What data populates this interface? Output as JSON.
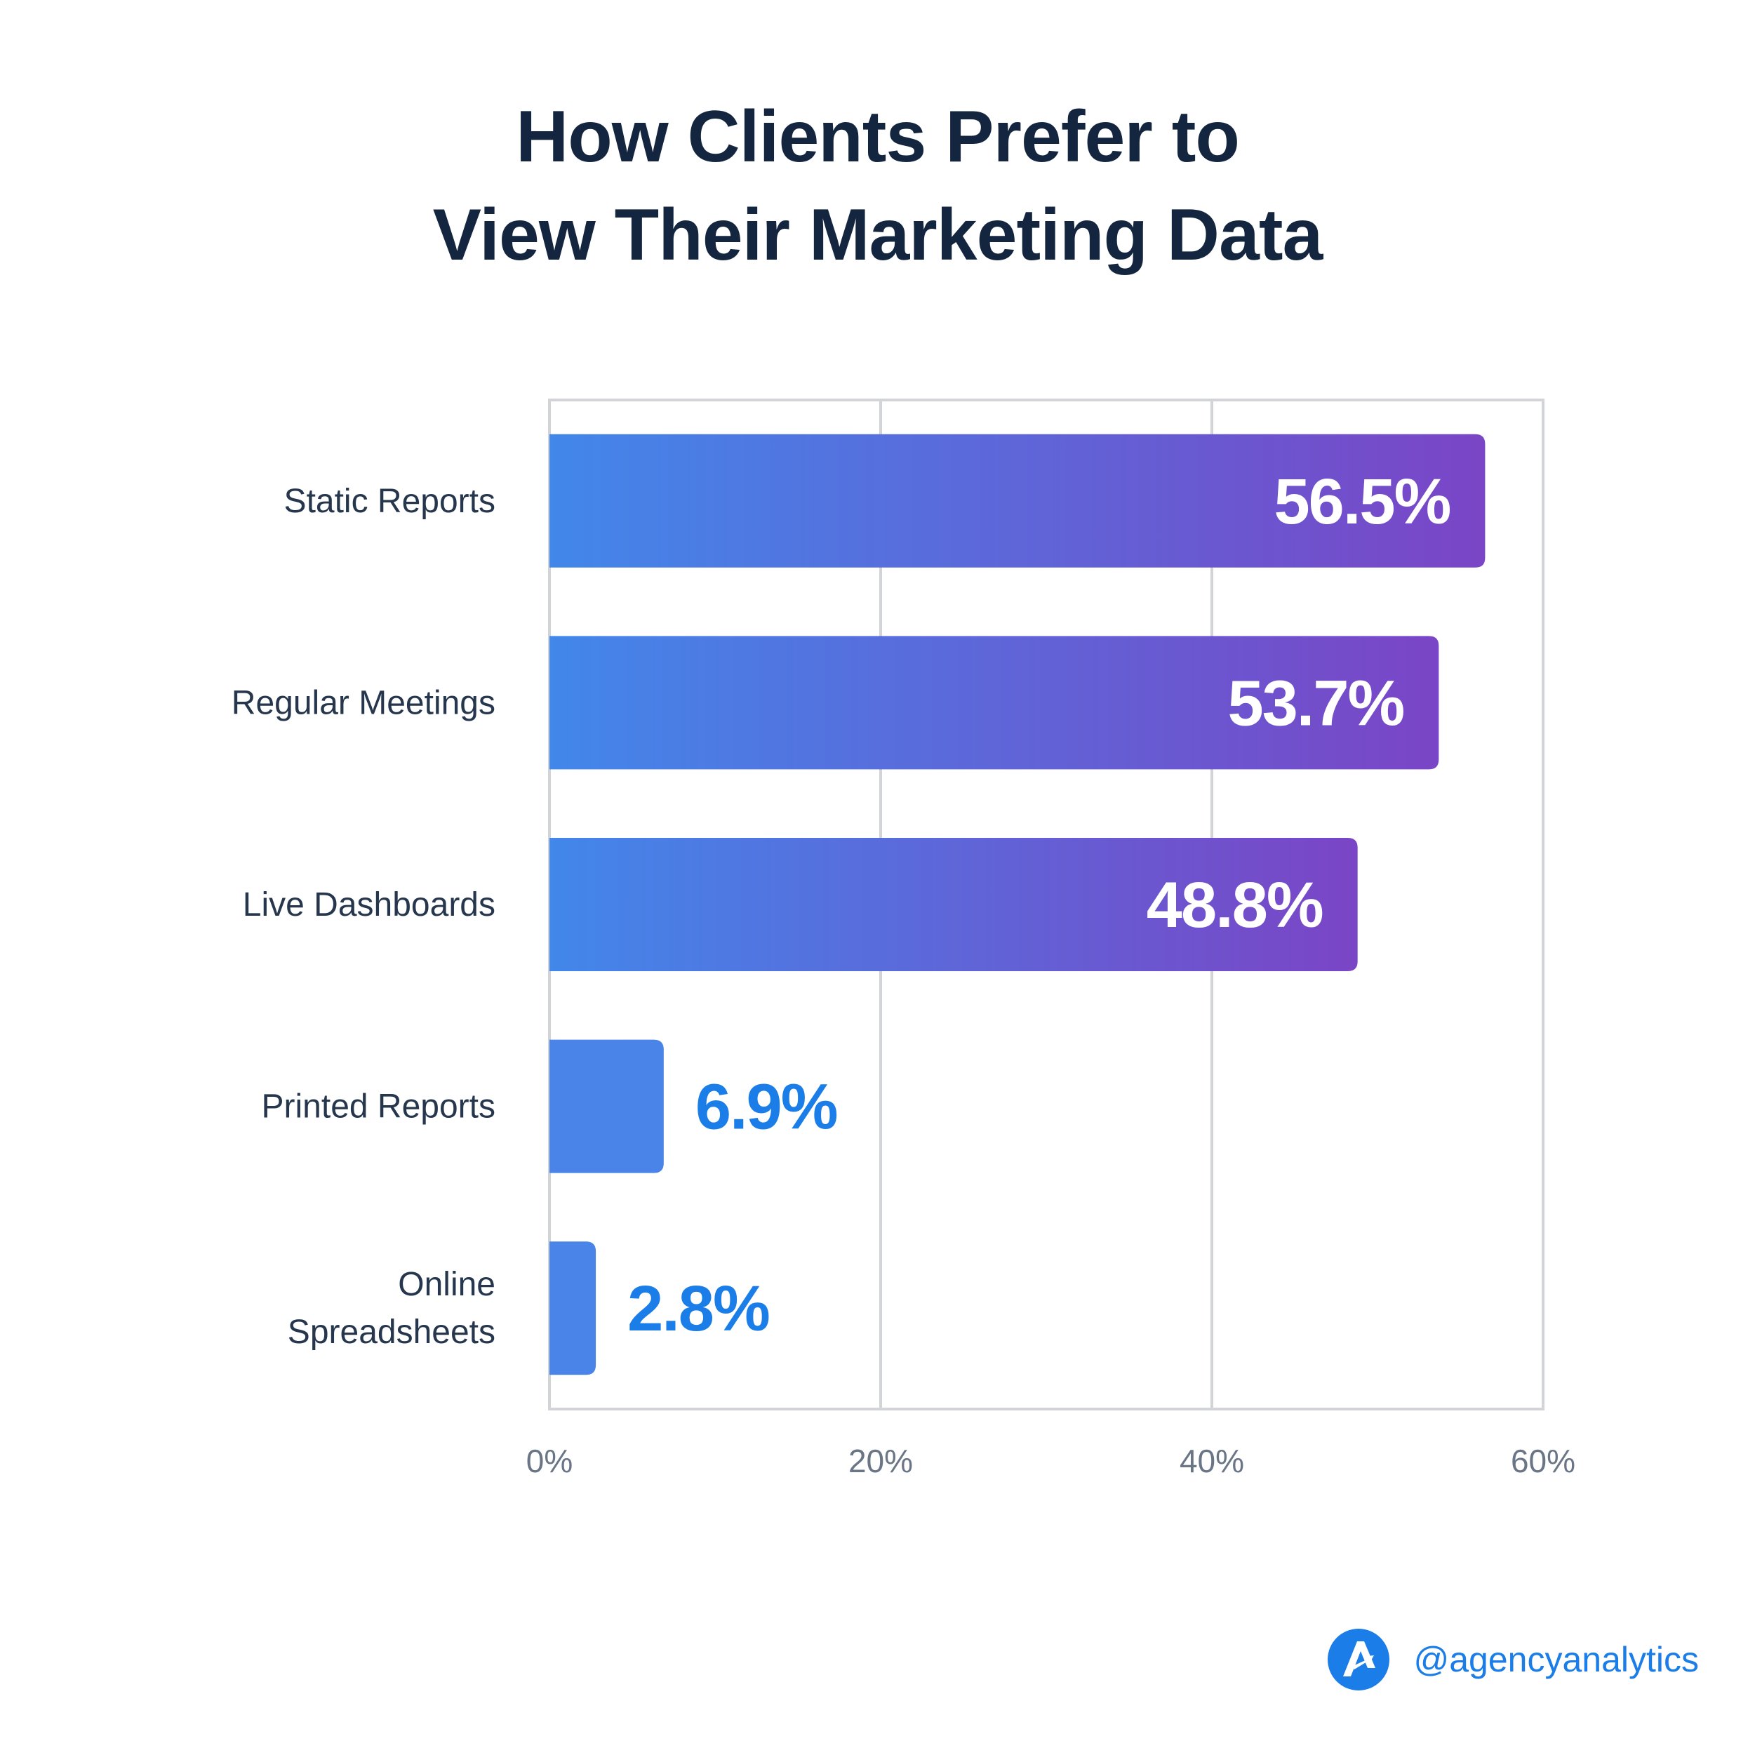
{
  "chart_data": {
    "type": "bar",
    "orientation": "horizontal",
    "title": [
      "How Clients Prefer to",
      "View Their Marketing Data"
    ],
    "categories": [
      [
        "Static Reports"
      ],
      [
        "Regular Meetings"
      ],
      [
        "Live Dashboards"
      ],
      [
        "Printed Reports"
      ],
      [
        "Online",
        "Spreadsheets"
      ]
    ],
    "values": [
      56.5,
      53.7,
      48.8,
      6.9,
      2.8
    ],
    "value_labels": [
      "56.5%",
      "53.7%",
      "48.8%",
      "6.9%",
      "2.8%"
    ],
    "xlim": [
      0,
      60
    ],
    "xticks": [
      0,
      20,
      40,
      60
    ],
    "xtick_labels": [
      "0%",
      "20%",
      "40%",
      "60%"
    ],
    "xlabel": "",
    "ylabel": "",
    "grid": true
  },
  "brand": {
    "handle": "@agencyanalytics",
    "logo": "agencyanalytics-logo-icon"
  },
  "colors": {
    "title": "#14263f",
    "gradient_start": "#4287ea",
    "gradient_end": "#7a45c6",
    "short_bar": "#4a84e8",
    "value_outside": "#1a7de8",
    "grid": "#d2d4d8"
  }
}
